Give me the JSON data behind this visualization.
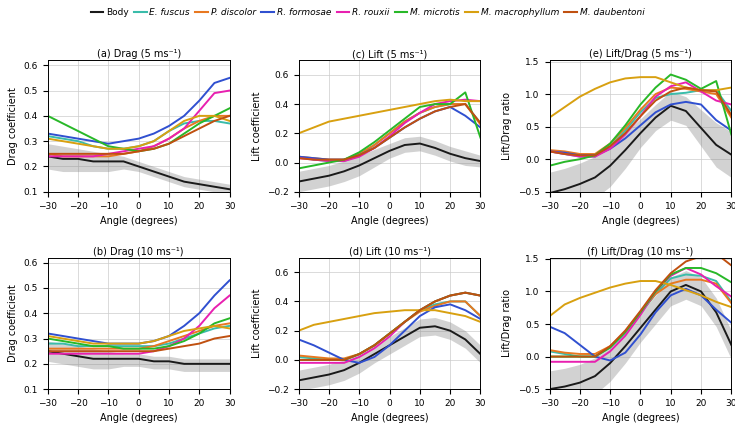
{
  "angles": [
    -30,
    -25,
    -20,
    -15,
    -10,
    -5,
    0,
    5,
    10,
    15,
    20,
    25,
    30
  ],
  "colors": {
    "body": "#1a1a1a",
    "e_fuscus": "#3abcaa",
    "p_discolor": "#e87820",
    "r_formosae": "#3050d0",
    "r_rouxii": "#e820b0",
    "m_microtis": "#28b828",
    "m_macrophyllum": "#d8a010",
    "m_daubentoni": "#c05010"
  },
  "legend_labels": [
    "Body",
    "E. fuscus",
    "P. discolor",
    "R. formosae",
    "R. rouxii",
    "M. microtis",
    "M. macrophyllum",
    "M. daubentoni"
  ],
  "legend_italic": [
    false,
    true,
    true,
    true,
    true,
    true,
    true,
    true
  ],
  "subtitles": [
    "(a) Drag (5 ms⁻¹)",
    "(b) Drag (10 ms⁻¹)",
    "(c) Lift (5 ms⁻¹)",
    "(d) Lift (10 ms⁻¹)",
    "(e) Lift/Drag (5 ms⁻¹)",
    "(f) Lift/Drag (10 ms⁻¹)"
  ],
  "drag5": {
    "body": [
      0.24,
      0.23,
      0.23,
      0.22,
      0.22,
      0.22,
      0.2,
      0.18,
      0.16,
      0.14,
      0.13,
      0.12,
      0.11
    ],
    "body_upper": [
      0.29,
      0.28,
      0.27,
      0.26,
      0.25,
      0.24,
      0.22,
      0.2,
      0.18,
      0.16,
      0.15,
      0.14,
      0.13
    ],
    "body_lower": [
      0.19,
      0.18,
      0.18,
      0.18,
      0.18,
      0.19,
      0.18,
      0.16,
      0.14,
      0.12,
      0.11,
      0.1,
      0.09
    ],
    "e_fuscus": [
      0.32,
      0.31,
      0.3,
      0.28,
      0.27,
      0.27,
      0.28,
      0.3,
      0.34,
      0.37,
      0.38,
      0.38,
      0.37
    ],
    "p_discolor": [
      0.25,
      0.24,
      0.24,
      0.24,
      0.24,
      0.25,
      0.26,
      0.28,
      0.31,
      0.35,
      0.38,
      0.4,
      0.4
    ],
    "r_formosae": [
      0.33,
      0.32,
      0.31,
      0.3,
      0.29,
      0.3,
      0.31,
      0.33,
      0.36,
      0.4,
      0.46,
      0.53,
      0.55
    ],
    "r_rouxii": [
      0.24,
      0.24,
      0.24,
      0.24,
      0.25,
      0.26,
      0.27,
      0.28,
      0.31,
      0.35,
      0.42,
      0.49,
      0.5
    ],
    "m_microtis": [
      0.4,
      0.37,
      0.34,
      0.31,
      0.28,
      0.27,
      0.26,
      0.27,
      0.29,
      0.33,
      0.37,
      0.4,
      0.43
    ],
    "m_macrophyllum": [
      0.31,
      0.3,
      0.29,
      0.28,
      0.27,
      0.27,
      0.28,
      0.3,
      0.34,
      0.38,
      0.4,
      0.4,
      0.38
    ],
    "m_daubentoni": [
      0.25,
      0.25,
      0.25,
      0.25,
      0.25,
      0.25,
      0.26,
      0.27,
      0.29,
      0.32,
      0.35,
      0.38,
      0.4
    ]
  },
  "drag10": {
    "body": [
      0.25,
      0.24,
      0.23,
      0.22,
      0.22,
      0.22,
      0.22,
      0.21,
      0.21,
      0.2,
      0.2,
      0.2,
      0.2
    ],
    "body_upper": [
      0.29,
      0.28,
      0.27,
      0.26,
      0.25,
      0.24,
      0.24,
      0.23,
      0.23,
      0.22,
      0.22,
      0.22,
      0.22
    ],
    "body_lower": [
      0.21,
      0.2,
      0.19,
      0.18,
      0.18,
      0.19,
      0.19,
      0.18,
      0.18,
      0.17,
      0.17,
      0.17,
      0.17
    ],
    "e_fuscus": [
      0.28,
      0.28,
      0.27,
      0.27,
      0.27,
      0.27,
      0.27,
      0.27,
      0.28,
      0.3,
      0.32,
      0.34,
      0.35
    ],
    "p_discolor": [
      0.26,
      0.26,
      0.26,
      0.26,
      0.26,
      0.26,
      0.26,
      0.27,
      0.29,
      0.31,
      0.33,
      0.35,
      0.36
    ],
    "r_formosae": [
      0.32,
      0.31,
      0.3,
      0.29,
      0.28,
      0.28,
      0.28,
      0.29,
      0.31,
      0.35,
      0.4,
      0.47,
      0.53
    ],
    "r_rouxii": [
      0.24,
      0.24,
      0.24,
      0.24,
      0.24,
      0.24,
      0.24,
      0.25,
      0.27,
      0.3,
      0.35,
      0.42,
      0.47
    ],
    "m_microtis": [
      0.3,
      0.29,
      0.28,
      0.27,
      0.27,
      0.26,
      0.26,
      0.26,
      0.27,
      0.29,
      0.32,
      0.36,
      0.38
    ],
    "m_macrophyllum": [
      0.31,
      0.3,
      0.29,
      0.28,
      0.28,
      0.28,
      0.28,
      0.29,
      0.31,
      0.33,
      0.34,
      0.35,
      0.34
    ],
    "m_daubentoni": [
      0.25,
      0.25,
      0.25,
      0.25,
      0.25,
      0.25,
      0.25,
      0.25,
      0.26,
      0.27,
      0.28,
      0.3,
      0.31
    ]
  },
  "lift5": {
    "body": [
      -0.13,
      -0.11,
      -0.09,
      -0.06,
      -0.02,
      0.03,
      0.08,
      0.12,
      0.13,
      0.1,
      0.06,
      0.03,
      0.01
    ],
    "body_upper": [
      -0.06,
      -0.04,
      -0.02,
      0.01,
      0.05,
      0.09,
      0.13,
      0.17,
      0.18,
      0.15,
      0.11,
      0.08,
      0.05
    ],
    "body_lower": [
      -0.2,
      -0.18,
      -0.16,
      -0.13,
      -0.09,
      -0.03,
      0.03,
      0.07,
      0.08,
      0.05,
      0.01,
      -0.02,
      -0.03
    ],
    "e_fuscus": [
      0.04,
      0.02,
      0.01,
      0.01,
      0.05,
      0.12,
      0.2,
      0.28,
      0.34,
      0.38,
      0.4,
      0.4,
      0.27
    ],
    "p_discolor": [
      0.04,
      0.03,
      0.02,
      0.02,
      0.06,
      0.12,
      0.2,
      0.28,
      0.34,
      0.38,
      0.4,
      0.4,
      0.26
    ],
    "r_formosae": [
      0.04,
      0.03,
      0.02,
      0.02,
      0.05,
      0.1,
      0.17,
      0.24,
      0.3,
      0.35,
      0.38,
      0.32,
      0.24
    ],
    "r_rouxii": [
      0.03,
      0.02,
      0.01,
      0.01,
      0.04,
      0.1,
      0.18,
      0.27,
      0.34,
      0.4,
      0.42,
      0.43,
      0.42
    ],
    "m_microtis": [
      -0.04,
      -0.02,
      0.0,
      0.02,
      0.07,
      0.14,
      0.22,
      0.3,
      0.38,
      0.4,
      0.4,
      0.48,
      0.17
    ],
    "m_macrophyllum": [
      0.2,
      0.24,
      0.28,
      0.3,
      0.32,
      0.34,
      0.36,
      0.38,
      0.4,
      0.42,
      0.43,
      0.42,
      0.42
    ],
    "m_daubentoni": [
      0.03,
      0.02,
      0.02,
      0.02,
      0.05,
      0.1,
      0.17,
      0.24,
      0.3,
      0.35,
      0.38,
      0.4,
      0.27
    ]
  },
  "lift10": {
    "body": [
      -0.14,
      -0.12,
      -0.1,
      -0.07,
      -0.02,
      0.04,
      0.1,
      0.16,
      0.22,
      0.23,
      0.2,
      0.14,
      0.04
    ],
    "body_upper": [
      -0.07,
      -0.05,
      -0.03,
      0.0,
      0.05,
      0.1,
      0.16,
      0.22,
      0.28,
      0.29,
      0.26,
      0.2,
      0.1
    ],
    "body_lower": [
      -0.21,
      -0.19,
      -0.17,
      -0.14,
      -0.09,
      -0.02,
      0.04,
      0.1,
      0.16,
      0.17,
      0.14,
      0.08,
      -0.02
    ],
    "e_fuscus": [
      0.02,
      0.01,
      0.0,
      0.0,
      0.04,
      0.1,
      0.18,
      0.26,
      0.34,
      0.38,
      0.4,
      0.4,
      0.3
    ],
    "p_discolor": [
      0.03,
      0.02,
      0.01,
      0.01,
      0.04,
      0.1,
      0.18,
      0.26,
      0.33,
      0.37,
      0.4,
      0.4,
      0.3
    ],
    "r_formosae": [
      0.14,
      0.1,
      0.05,
      0.0,
      -0.02,
      0.02,
      0.1,
      0.2,
      0.3,
      0.36,
      0.38,
      0.34,
      0.28
    ],
    "r_rouxii": [
      -0.02,
      -0.02,
      -0.02,
      -0.02,
      0.02,
      0.08,
      0.16,
      0.26,
      0.34,
      0.4,
      0.44,
      0.46,
      0.44
    ],
    "m_microtis": [
      0.0,
      0.0,
      0.0,
      0.0,
      0.04,
      0.1,
      0.18,
      0.26,
      0.34,
      0.4,
      0.44,
      0.46,
      0.44
    ],
    "m_macrophyllum": [
      0.2,
      0.24,
      0.26,
      0.28,
      0.3,
      0.32,
      0.33,
      0.34,
      0.34,
      0.34,
      0.32,
      0.3,
      0.26
    ],
    "m_daubentoni": [
      0.0,
      0.0,
      0.0,
      0.0,
      0.04,
      0.1,
      0.18,
      0.26,
      0.34,
      0.4,
      0.44,
      0.46,
      0.44
    ]
  },
  "ld5": {
    "body": [
      -0.52,
      -0.46,
      -0.38,
      -0.28,
      -0.1,
      0.14,
      0.4,
      0.64,
      0.82,
      0.74,
      0.48,
      0.22,
      0.07
    ],
    "body_upper": [
      -0.2,
      -0.14,
      -0.06,
      0.04,
      0.22,
      0.42,
      0.62,
      0.84,
      1.04,
      0.96,
      0.76,
      0.56,
      0.42
    ],
    "body_lower": [
      -0.84,
      -0.78,
      -0.7,
      -0.6,
      -0.42,
      -0.14,
      0.18,
      0.44,
      0.6,
      0.52,
      0.2,
      -0.12,
      -0.28
    ],
    "e_fuscus": [
      0.12,
      0.08,
      0.04,
      0.04,
      0.2,
      0.44,
      0.72,
      0.94,
      1.0,
      1.02,
      1.06,
      1.06,
      0.74
    ],
    "p_discolor": [
      0.14,
      0.12,
      0.08,
      0.08,
      0.24,
      0.48,
      0.76,
      1.0,
      1.1,
      1.08,
      1.04,
      1.0,
      0.64
    ],
    "r_formosae": [
      0.12,
      0.1,
      0.06,
      0.06,
      0.16,
      0.32,
      0.52,
      0.72,
      0.84,
      0.88,
      0.84,
      0.6,
      0.44
    ],
    "r_rouxii": [
      0.12,
      0.08,
      0.04,
      0.04,
      0.16,
      0.38,
      0.66,
      0.96,
      1.12,
      1.18,
      1.04,
      0.9,
      0.84
    ],
    "m_microtis": [
      -0.1,
      -0.04,
      0.0,
      0.06,
      0.24,
      0.52,
      0.84,
      1.1,
      1.3,
      1.22,
      1.08,
      1.2,
      0.38
    ],
    "m_macrophyllum": [
      0.64,
      0.8,
      0.96,
      1.08,
      1.18,
      1.24,
      1.26,
      1.26,
      1.18,
      1.1,
      1.06,
      1.06,
      1.1
    ],
    "m_daubentoni": [
      0.12,
      0.08,
      0.06,
      0.06,
      0.2,
      0.4,
      0.66,
      0.9,
      1.04,
      1.1,
      1.06,
      1.04,
      0.68
    ]
  },
  "ld10": {
    "body": [
      -0.5,
      -0.46,
      -0.4,
      -0.3,
      -0.1,
      0.16,
      0.44,
      0.72,
      1.0,
      1.1,
      1.0,
      0.68,
      0.18
    ],
    "body_upper": [
      -0.22,
      -0.18,
      -0.12,
      -0.02,
      0.18,
      0.42,
      0.66,
      0.94,
      1.22,
      1.32,
      1.22,
      0.9,
      0.4
    ],
    "body_lower": [
      -0.78,
      -0.74,
      -0.68,
      -0.58,
      -0.38,
      -0.1,
      0.22,
      0.5,
      0.78,
      0.88,
      0.78,
      0.46,
      -0.04
    ],
    "e_fuscus": [
      0.08,
      0.04,
      0.0,
      0.0,
      0.14,
      0.36,
      0.66,
      0.96,
      1.2,
      1.26,
      1.24,
      1.16,
      0.84
    ],
    "p_discolor": [
      0.1,
      0.06,
      0.04,
      0.04,
      0.16,
      0.38,
      0.68,
      0.96,
      1.12,
      1.18,
      1.18,
      1.12,
      0.82
    ],
    "r_formosae": [
      0.46,
      0.36,
      0.18,
      0.0,
      -0.06,
      0.06,
      0.34,
      0.68,
      0.94,
      1.04,
      0.94,
      0.72,
      0.52
    ],
    "r_rouxii": [
      -0.08,
      -0.08,
      -0.08,
      -0.08,
      0.08,
      0.32,
      0.64,
      1.0,
      1.24,
      1.36,
      1.26,
      1.08,
      0.92
    ],
    "m_microtis": [
      0.0,
      0.0,
      0.0,
      0.0,
      0.14,
      0.38,
      0.68,
      1.0,
      1.26,
      1.36,
      1.36,
      1.28,
      1.14
    ],
    "m_macrophyllum": [
      0.62,
      0.8,
      0.9,
      0.98,
      1.06,
      1.12,
      1.16,
      1.16,
      1.1,
      1.02,
      0.94,
      0.84,
      0.76
    ],
    "m_daubentoni": [
      0.0,
      0.0,
      0.0,
      0.0,
      0.16,
      0.4,
      0.7,
      1.02,
      1.28,
      1.46,
      1.54,
      1.58,
      1.4
    ]
  }
}
